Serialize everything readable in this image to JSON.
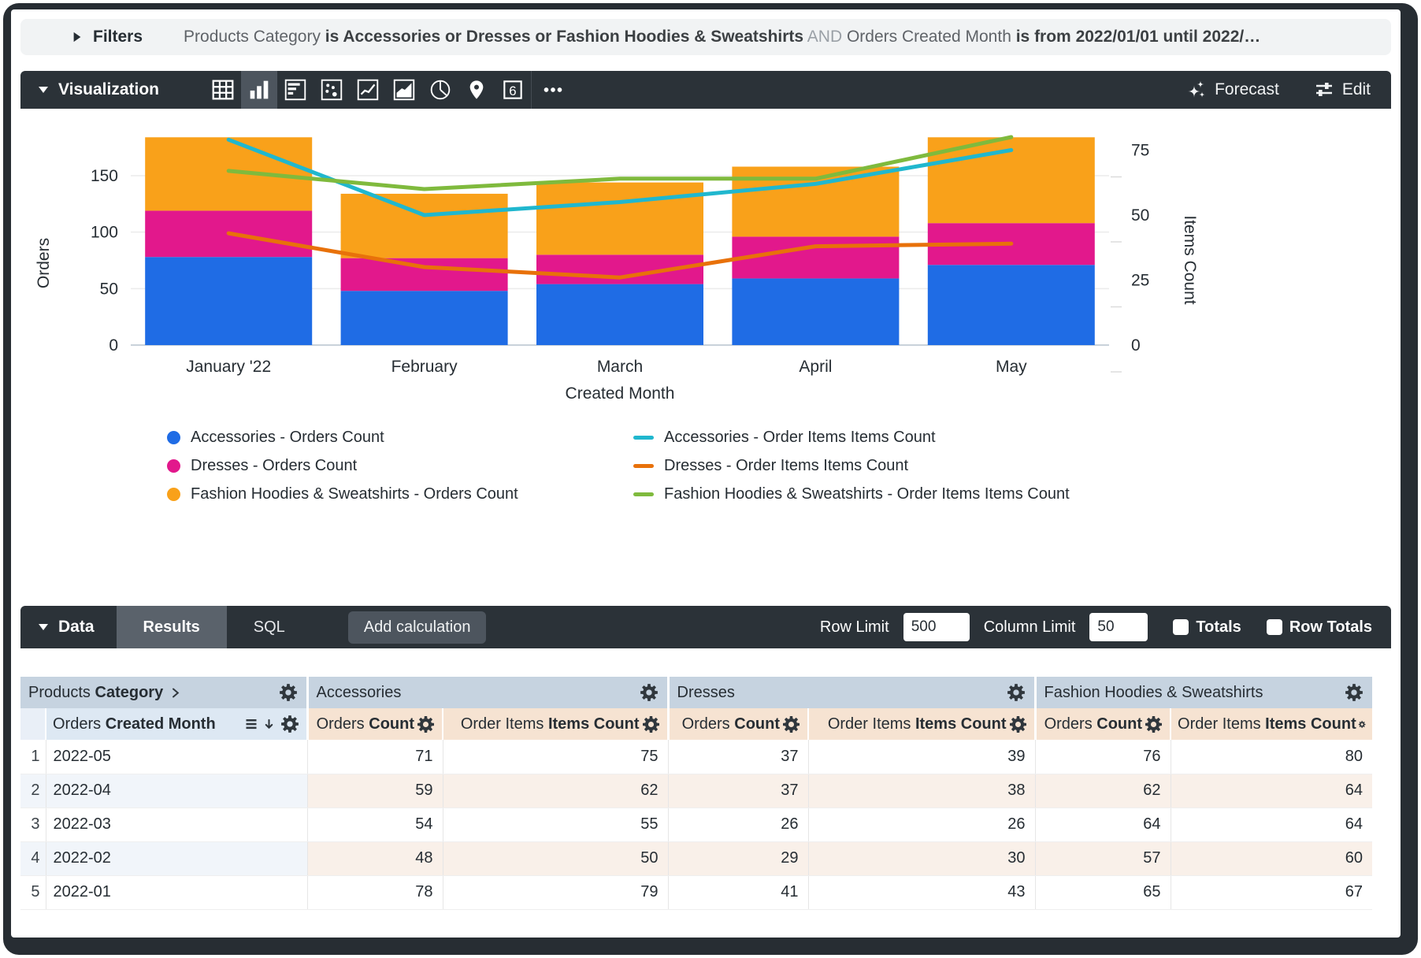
{
  "filters": {
    "label": "Filters",
    "segments": [
      {
        "text": "Products Category ",
        "style": "normal"
      },
      {
        "text": "is Accessories or Dresses or Fashion Hoodies & Sweatshirts",
        "style": "bold"
      },
      {
        "text": " AND ",
        "style": "dim"
      },
      {
        "text": "Orders Created Month ",
        "style": "normal"
      },
      {
        "text": "is from 2022/01/01 until 2022/…",
        "style": "bold"
      }
    ]
  },
  "viz_toolbar": {
    "label": "Visualization",
    "icons": [
      {
        "name": "table-icon",
        "selected": false
      },
      {
        "name": "column-chart-icon",
        "selected": true
      },
      {
        "name": "bar-chart-icon",
        "selected": false
      },
      {
        "name": "scatter-chart-icon",
        "selected": false
      },
      {
        "name": "line-chart-icon",
        "selected": false
      },
      {
        "name": "area-chart-icon",
        "selected": false
      },
      {
        "name": "pie-chart-icon",
        "selected": false
      },
      {
        "name": "map-icon",
        "selected": false
      },
      {
        "name": "single-value-icon",
        "selected": false,
        "glyph": "6"
      },
      {
        "name": "more-icon",
        "selected": false
      }
    ],
    "forecast_label": "Forecast",
    "edit_label": "Edit"
  },
  "chart_data": {
    "type": "combo (stacked bar + line)",
    "categories": [
      "January '22",
      "February",
      "March",
      "April",
      "May"
    ],
    "x_axis_label": "Created Month",
    "left_axis": {
      "label": "Orders",
      "ticks": [
        0,
        50,
        100,
        150
      ],
      "max": 192
    },
    "right_axis": {
      "label": "Items Count",
      "ticks": [
        0,
        25,
        50,
        75
      ],
      "max": 84
    },
    "grid": true,
    "legend_position": "bottom",
    "bar_series": [
      {
        "name": "Accessories - Orders Count",
        "color": "#1f6ce5",
        "values": [
          78,
          48,
          54,
          59,
          71
        ]
      },
      {
        "name": "Dresses - Orders Count",
        "color": "#e2188c",
        "values": [
          41,
          29,
          26,
          37,
          37
        ]
      },
      {
        "name": "Fashion Hoodies & Sweatshirts - Orders Count",
        "color": "#f9a11a",
        "values": [
          65,
          57,
          64,
          62,
          76
        ]
      }
    ],
    "line_series": [
      {
        "name": "Accessories - Order Items Items Count",
        "color": "#20b7ce",
        "values": [
          79,
          50,
          55,
          62,
          75
        ]
      },
      {
        "name": "Dresses - Order Items Items Count",
        "color": "#e8710a",
        "values": [
          43,
          30,
          26,
          38,
          39
        ]
      },
      {
        "name": "Fashion Hoodies & Sweatshirts - Order Items Items Count",
        "color": "#7fba3d",
        "values": [
          67,
          60,
          64,
          64,
          80
        ]
      }
    ]
  },
  "data_bar": {
    "label": "Data",
    "tabs": [
      {
        "label": "Results",
        "active": true
      },
      {
        "label": "SQL",
        "active": false
      }
    ],
    "add_calculation_label": "Add calculation",
    "row_limit_label": "Row Limit",
    "row_limit_value": "500",
    "column_limit_label": "Column Limit",
    "column_limit_value": "50",
    "totals_label": "Totals",
    "totals_checked": false,
    "row_totals_label": "Row Totals",
    "row_totals_checked": false
  },
  "table": {
    "dimension_group": {
      "prefix": "Products",
      "bold": "Category"
    },
    "groups": [
      "Accessories",
      "Dresses",
      "Fashion Hoodies & Sweatshirts"
    ],
    "dimension_column": {
      "prefix": "Orders",
      "bold": "Created Month"
    },
    "measure_columns": [
      {
        "prefix": "Orders",
        "bold": "Count"
      },
      {
        "prefix": "Order Items",
        "bold": "Items Count"
      }
    ],
    "rows": [
      {
        "num": "1",
        "month": "2022-05",
        "values": [
          71,
          75,
          37,
          39,
          76,
          80
        ]
      },
      {
        "num": "2",
        "month": "2022-04",
        "values": [
          59,
          62,
          37,
          38,
          62,
          64
        ]
      },
      {
        "num": "3",
        "month": "2022-03",
        "values": [
          54,
          55,
          26,
          26,
          64,
          64
        ]
      },
      {
        "num": "4",
        "month": "2022-02",
        "values": [
          48,
          50,
          29,
          30,
          57,
          60
        ]
      },
      {
        "num": "5",
        "month": "2022-01",
        "values": [
          78,
          79,
          41,
          43,
          65,
          67
        ]
      }
    ]
  },
  "colors": {
    "toolbar_bg": "#2b3238",
    "selected_tile_bg": "#4d555e",
    "group_header_bg": "#c6d3e0",
    "dimension_header_bg": "#dde8f3",
    "measure_header_bg": "#f6e3d2",
    "stripe_dimension_bg": "#f1f5fa",
    "stripe_measure_bg": "#f9f0e9"
  }
}
